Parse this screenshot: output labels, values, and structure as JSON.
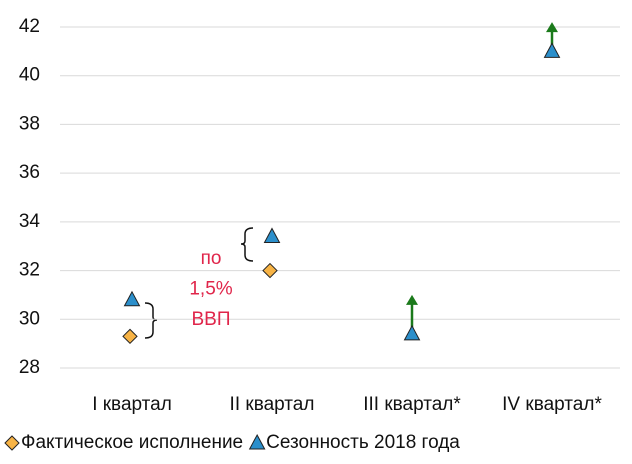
{
  "chart_data": {
    "type": "scatter",
    "categories": [
      "I квартал",
      "II квартал",
      "III квартал*",
      "IV квартал*"
    ],
    "series": [
      {
        "name": "Фактическое исполнение",
        "color": "#f7b345",
        "marker": "diamond",
        "values": [
          29.3,
          32.0,
          null,
          null
        ]
      },
      {
        "name": "Сезонность 2018 года",
        "color": "#2b8fcb",
        "marker": "triangle",
        "values": [
          30.8,
          33.4,
          29.4,
          41.0
        ]
      }
    ],
    "arrow_to": [
      null,
      null,
      31.0,
      42.2
    ],
    "arrow_color": "#1b7a1b",
    "annotation": {
      "lines": [
        "по",
        "1,5%",
        "ВВП"
      ],
      "color": "#e0254a"
    },
    "ylim": [
      28,
      42
    ],
    "yticks": [
      28,
      30,
      32,
      34,
      36,
      38,
      40,
      42
    ],
    "grid": true,
    "legend": "bottom"
  }
}
